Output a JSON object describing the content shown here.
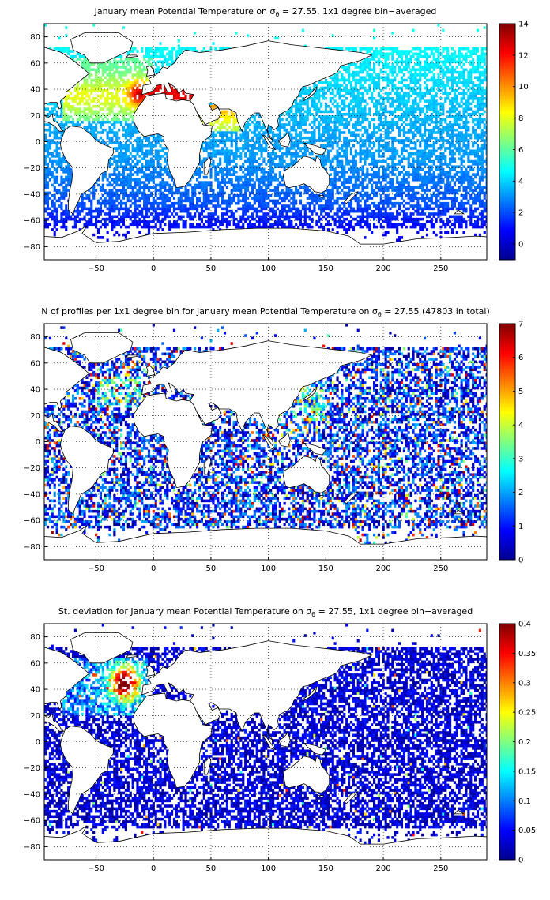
{
  "colormap": "jet",
  "colors": {
    "land": "#ffffff",
    "frame": "#000000",
    "grid": "#000000"
  },
  "chart_data": [
    {
      "type": "heatmap",
      "title_prefix": "January mean Potential Temperature on ",
      "title_symbol": "σ",
      "title_subscript": "θ",
      "title_suffix": " = 27.55, 1x1 degree bin−averaged",
      "xlim": [
        -95,
        290
      ],
      "ylim": [
        -90,
        90
      ],
      "xticks": [
        -50,
        0,
        50,
        100,
        150,
        200,
        250
      ],
      "yticks": [
        80,
        60,
        40,
        20,
        0,
        -20,
        -40,
        -60,
        -80
      ],
      "grid": true,
      "colorbar": {
        "min": -1,
        "max": 14,
        "ticks": [
          14,
          12,
          10,
          8,
          6,
          4,
          2,
          0
        ]
      },
      "field": "temperature"
    },
    {
      "type": "heatmap",
      "title_prefix": "N of profiles per 1x1 degree bin for January mean Potential Temperature on ",
      "title_symbol": "σ",
      "title_subscript": "θ",
      "title_suffix": " = 27.55 (47803 in total)",
      "xlim": [
        -95,
        290
      ],
      "ylim": [
        -90,
        90
      ],
      "xticks": [
        -50,
        0,
        50,
        100,
        150,
        200,
        250
      ],
      "yticks": [
        80,
        60,
        40,
        20,
        0,
        -20,
        -40,
        -60,
        -80
      ],
      "grid": true,
      "colorbar": {
        "min": 0,
        "max": 7,
        "ticks": [
          7,
          6,
          5,
          4,
          3,
          2,
          1,
          0
        ]
      },
      "field": "count"
    },
    {
      "type": "heatmap",
      "title_prefix": "St. deviation for January mean Potential Temperature on ",
      "title_symbol": "σ",
      "title_subscript": "θ",
      "title_suffix": " = 27.55, 1x1 degree bin−averaged",
      "xlim": [
        -95,
        290
      ],
      "ylim": [
        -90,
        90
      ],
      "xticks": [
        -50,
        0,
        50,
        100,
        150,
        200,
        250
      ],
      "yticks": [
        80,
        60,
        40,
        20,
        0,
        -20,
        -40,
        -60,
        -80
      ],
      "grid": true,
      "colorbar": {
        "min": 0,
        "max": 0.4,
        "ticks": [
          0.4,
          0.35,
          0.3,
          0.25,
          0.2,
          0.15,
          0.1,
          0.05,
          0
        ]
      },
      "field": "stdev"
    }
  ]
}
